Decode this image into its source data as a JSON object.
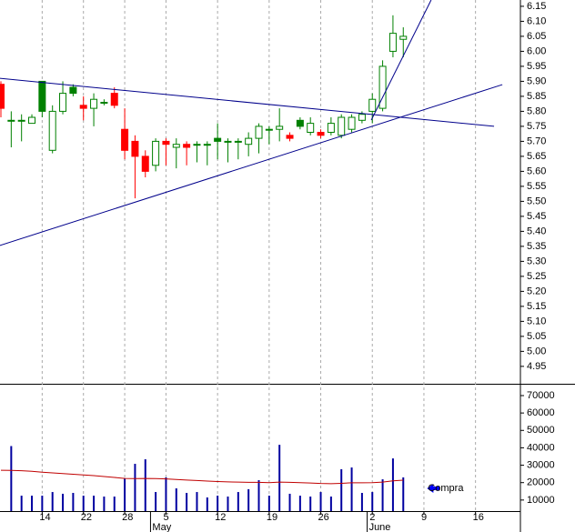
{
  "chart_data": {
    "type": "candlestick",
    "categories": [
      null,
      null,
      null,
      null,
      "14",
      null,
      null,
      null,
      "22",
      null,
      null,
      null,
      "28",
      null,
      null,
      null,
      "5",
      null,
      null,
      null,
      null,
      "12",
      null,
      null,
      null,
      null,
      "19",
      null,
      null,
      null,
      null,
      "26",
      null,
      null,
      null,
      null,
      "2",
      null,
      null,
      null,
      null,
      "9",
      null,
      null,
      null,
      null,
      "16",
      null,
      null,
      null,
      null
    ],
    "months": [
      {
        "label": "May",
        "index": 15
      },
      {
        "label": "June",
        "index": 36
      }
    ],
    "open": [
      5.89,
      5.77,
      5.77,
      5.76,
      5.9,
      5.67,
      5.8,
      5.88,
      5.82,
      5.81,
      5.83,
      5.86,
      5.74,
      5.7,
      5.65,
      5.62,
      5.7,
      5.68,
      5.69,
      5.69,
      5.69,
      5.71,
      5.7,
      5.7,
      5.69,
      5.71,
      5.74,
      5.74,
      5.72,
      5.77,
      5.73,
      5.73,
      5.73,
      5.72,
      5.74,
      5.77,
      5.8,
      5.81,
      6.0,
      6.04,
      null,
      null,
      null,
      null,
      null,
      null,
      null,
      null,
      null,
      null,
      null
    ],
    "high": [
      5.9,
      5.8,
      5.79,
      5.79,
      5.9,
      5.82,
      5.9,
      5.89,
      5.85,
      5.86,
      5.84,
      5.88,
      5.81,
      5.72,
      5.67,
      5.71,
      5.71,
      5.71,
      5.7,
      5.7,
      5.7,
      5.76,
      5.71,
      5.71,
      5.73,
      5.76,
      5.75,
      5.81,
      5.73,
      5.78,
      5.78,
      5.74,
      5.78,
      5.79,
      5.79,
      5.8,
      5.86,
      5.97,
      6.12,
      6.08,
      null,
      null,
      null,
      null,
      null,
      null,
      null,
      null,
      null,
      null,
      null
    ],
    "low": [
      5.78,
      5.68,
      5.7,
      5.76,
      5.78,
      5.66,
      5.79,
      5.85,
      5.77,
      5.75,
      5.82,
      5.81,
      5.64,
      5.51,
      5.58,
      5.6,
      5.62,
      5.61,
      5.62,
      5.63,
      5.62,
      5.64,
      5.63,
      5.64,
      5.65,
      5.66,
      5.69,
      5.7,
      5.7,
      5.74,
      5.72,
      5.71,
      5.72,
      5.71,
      5.73,
      5.76,
      5.76,
      5.8,
      5.98,
      5.98,
      null,
      null,
      null,
      null,
      null,
      null,
      null,
      null,
      null,
      null,
      null
    ],
    "close": [
      5.81,
      5.77,
      5.77,
      5.78,
      5.8,
      5.8,
      5.86,
      5.86,
      5.81,
      5.84,
      5.83,
      5.82,
      5.67,
      5.65,
      5.6,
      5.7,
      5.69,
      5.69,
      5.68,
      5.69,
      5.69,
      5.7,
      5.7,
      5.7,
      5.71,
      5.75,
      5.74,
      5.75,
      5.71,
      5.75,
      5.76,
      5.72,
      5.76,
      5.78,
      5.78,
      5.79,
      5.84,
      5.95,
      6.06,
      6.05,
      null,
      null,
      null,
      null,
      null,
      null,
      null,
      null,
      null,
      null,
      null
    ],
    "colors": {
      "up": "#008000",
      "down": "#ff0000"
    },
    "ylim": [
      4.892,
      6.171
    ],
    "yticks": [
      4.95,
      {
        "value": 5,
        "label": "5.00"
      },
      5.05,
      {
        "value": 5.1,
        "label": "5.10"
      },
      5.15,
      {
        "value": 5.2,
        "label": "5.20"
      },
      5.25,
      {
        "value": 5.3,
        "label": "5.30"
      },
      5.35,
      {
        "value": 5.4,
        "label": "5.40"
      },
      5.45,
      {
        "value": 5.5,
        "label": "5.50"
      },
      5.55,
      {
        "value": 5.6,
        "label": "5.60"
      },
      5.65,
      {
        "value": 5.7,
        "label": "5.70"
      },
      5.75,
      {
        "value": 5.8,
        "label": "5.80"
      },
      5.85,
      {
        "value": 5.9,
        "label": "5.90"
      },
      5.95,
      {
        "value": 6,
        "label": "6.00"
      },
      6.05,
      {
        "value": 6.1,
        "label": "6.10"
      },
      6.15
    ],
    "grid": true,
    "trendlines": [
      {
        "x": [
          -0.1,
          47.8
        ],
        "y": [
          5.91,
          5.75
        ],
        "color": "#00008b"
      },
      {
        "x": [
          -0.1,
          48.6
        ],
        "y": [
          5.353,
          5.889
        ],
        "color": "#00008b"
      },
      {
        "x": [
          35.9,
          41.7
        ],
        "y": [
          5.771,
          6.171
        ],
        "color": "#00008b"
      }
    ],
    "volume": {
      "color": "#0000a0",
      "values": [
        null,
        41000,
        12500,
        12500,
        12500,
        14600,
        13600,
        14100,
        12500,
        12500,
        12000,
        12000,
        22400,
        30800,
        33400,
        14600,
        23000,
        16700,
        14100,
        14600,
        11500,
        12500,
        12000,
        14600,
        16200,
        21400,
        12500,
        41700,
        13600,
        12500,
        12000,
        14600,
        12000,
        27700,
        28700,
        14100,
        14600,
        21900,
        33900,
        23000,
        null,
        null,
        null,
        null,
        null,
        null,
        null,
        null,
        null,
        null,
        null
      ],
      "ylim": [
        3650,
        75740
      ],
      "yticks": [
        10000,
        20000,
        30000,
        40000,
        50000,
        60000,
        70000
      ]
    },
    "moving_average": {
      "color": "#c00000",
      "values": [
        27100,
        27000,
        26800,
        26500,
        26000,
        25600,
        25200,
        24800,
        24400,
        24000,
        23500,
        23000,
        22400,
        22300,
        22400,
        22300,
        22100,
        21800,
        21500,
        21200,
        20900,
        20600,
        20400,
        20300,
        20200,
        20200,
        20000,
        20300,
        20200,
        20000,
        19800,
        19500,
        19400,
        19600,
        19900,
        19900,
        20000,
        20300,
        21000,
        21400,
        null,
        null,
        null,
        null,
        null,
        null,
        null,
        null,
        null,
        null,
        null
      ]
    },
    "annotation": {
      "text": "Compra",
      "x": 41.3,
      "y": 16700,
      "color": "#0000ff"
    }
  }
}
